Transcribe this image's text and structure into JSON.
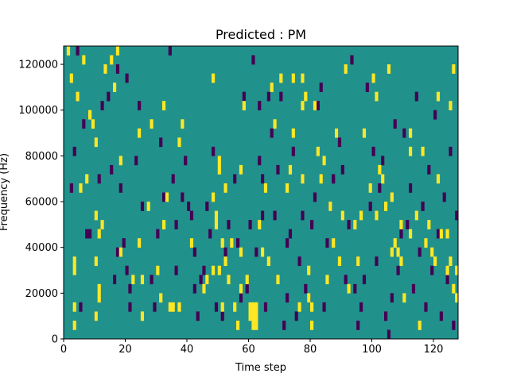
{
  "chart_data": {
    "type": "heatmap",
    "title": "Predicted : PM",
    "xlabel": "Time step",
    "ylabel": "Frequency (Hz)",
    "xlim": [
      0,
      128
    ],
    "ylim": [
      0,
      128000
    ],
    "x_ticks": [
      0,
      20,
      40,
      60,
      80,
      100,
      120
    ],
    "y_ticks": [
      0,
      20000,
      40000,
      60000,
      80000,
      100000,
      120000
    ],
    "x_tick_labels": [
      "0",
      "20",
      "40",
      "60",
      "80",
      "100",
      "120"
    ],
    "y_tick_labels": [
      "0",
      "20000",
      "40000",
      "60000",
      "80000",
      "100000",
      "120000"
    ],
    "n_time_steps": 128,
    "n_frequency_bins": 32,
    "bin_width_hz": 4000,
    "colormap": "viridis",
    "value_range": [
      0,
      1
    ],
    "background_value": 0.5,
    "colors": {
      "low": "#440154",
      "mid": "#21918c",
      "high": "#fde725"
    },
    "cells_high": [
      [
        1,
        31
      ],
      [
        2,
        28
      ],
      [
        3,
        7
      ],
      [
        3,
        8
      ],
      [
        3,
        3
      ],
      [
        3,
        1
      ],
      [
        4,
        26
      ],
      [
        5,
        16
      ],
      [
        6,
        30
      ],
      [
        7,
        17
      ],
      [
        8,
        24
      ],
      [
        9,
        23
      ],
      [
        10,
        2
      ],
      [
        10,
        21
      ],
      [
        10,
        13
      ],
      [
        10,
        8
      ],
      [
        11,
        5
      ],
      [
        11,
        4
      ],
      [
        11,
        11
      ],
      [
        12,
        12
      ],
      [
        13,
        29
      ],
      [
        15,
        30
      ],
      [
        16,
        27
      ],
      [
        17,
        31
      ],
      [
        18,
        9
      ],
      [
        18,
        19
      ],
      [
        22,
        6
      ],
      [
        24,
        22
      ],
      [
        24,
        10
      ],
      [
        25,
        2
      ],
      [
        25,
        6
      ],
      [
        27,
        14
      ],
      [
        28,
        23
      ],
      [
        30,
        7
      ],
      [
        31,
        4
      ],
      [
        32,
        25
      ],
      [
        32,
        12
      ],
      [
        33,
        15
      ],
      [
        34,
        3
      ],
      [
        35,
        3
      ],
      [
        37,
        21
      ],
      [
        37,
        3
      ],
      [
        38,
        23
      ],
      [
        41,
        10
      ],
      [
        45,
        5
      ],
      [
        46,
        6
      ],
      [
        48,
        7
      ],
      [
        48,
        15
      ],
      [
        48,
        28
      ],
      [
        49,
        12
      ],
      [
        49,
        13
      ],
      [
        50,
        18
      ],
      [
        50,
        19
      ],
      [
        50,
        7
      ],
      [
        51,
        3
      ],
      [
        51,
        10
      ],
      [
        52,
        8
      ],
      [
        52,
        16
      ],
      [
        53,
        6
      ],
      [
        54,
        10
      ],
      [
        55,
        3
      ],
      [
        56,
        1
      ],
      [
        57,
        5
      ],
      [
        57,
        18
      ],
      [
        57,
        9
      ],
      [
        58,
        25
      ],
      [
        59,
        6
      ],
      [
        60,
        3
      ],
      [
        60,
        2
      ],
      [
        61,
        3
      ],
      [
        61,
        2
      ],
      [
        61,
        1
      ],
      [
        62,
        1
      ],
      [
        62,
        2
      ],
      [
        62,
        3
      ],
      [
        63,
        12
      ],
      [
        64,
        9
      ],
      [
        65,
        16
      ],
      [
        66,
        8
      ],
      [
        67,
        27
      ],
      [
        68,
        23
      ],
      [
        69,
        6
      ],
      [
        70,
        28
      ],
      [
        72,
        16
      ],
      [
        73,
        18
      ],
      [
        74,
        22
      ],
      [
        74,
        28
      ],
      [
        76,
        3
      ],
      [
        77,
        28
      ],
      [
        77,
        25
      ],
      [
        77,
        17
      ],
      [
        78,
        26
      ],
      [
        79,
        7
      ],
      [
        79,
        4
      ],
      [
        80,
        3
      ],
      [
        80,
        1
      ],
      [
        81,
        25
      ],
      [
        82,
        20
      ],
      [
        83,
        17
      ],
      [
        84,
        19
      ],
      [
        85,
        6
      ],
      [
        86,
        14
      ],
      [
        87,
        10
      ],
      [
        88,
        22
      ],
      [
        89,
        8
      ],
      [
        90,
        13
      ],
      [
        91,
        29
      ],
      [
        92,
        5
      ],
      [
        94,
        12
      ],
      [
        95,
        8
      ],
      [
        96,
        13
      ],
      [
        97,
        22
      ],
      [
        99,
        16
      ],
      [
        100,
        28
      ],
      [
        101,
        26
      ],
      [
        101,
        13
      ],
      [
        102,
        18
      ],
      [
        103,
        17
      ],
      [
        104,
        14
      ],
      [
        105,
        29
      ],
      [
        106,
        9
      ],
      [
        106,
        15
      ],
      [
        107,
        10
      ],
      [
        108,
        9
      ],
      [
        109,
        8
      ],
      [
        109,
        12
      ],
      [
        110,
        4
      ],
      [
        112,
        22
      ],
      [
        112,
        11
      ],
      [
        112,
        20
      ],
      [
        114,
        13
      ],
      [
        115,
        1
      ],
      [
        116,
        20
      ],
      [
        117,
        10
      ],
      [
        118,
        12
      ],
      [
        119,
        9
      ],
      [
        120,
        8
      ],
      [
        121,
        26
      ],
      [
        121,
        17
      ],
      [
        122,
        11
      ],
      [
        124,
        11
      ],
      [
        124,
        7
      ],
      [
        125,
        8
      ],
      [
        125,
        25
      ],
      [
        126,
        29
      ],
      [
        126,
        5
      ],
      [
        127,
        7
      ],
      [
        127,
        4
      ]
    ],
    "cells_low": [
      [
        2,
        16
      ],
      [
        3,
        20
      ],
      [
        4,
        31
      ],
      [
        5,
        3
      ],
      [
        6,
        23
      ],
      [
        7,
        11
      ],
      [
        8,
        11
      ],
      [
        10,
        2
      ],
      [
        11,
        17
      ],
      [
        12,
        25
      ],
      [
        14,
        26
      ],
      [
        15,
        18
      ],
      [
        16,
        6
      ],
      [
        17,
        29
      ],
      [
        17,
        9
      ],
      [
        18,
        16
      ],
      [
        19,
        10
      ],
      [
        20,
        28
      ],
      [
        20,
        7
      ],
      [
        21,
        5
      ],
      [
        21,
        3
      ],
      [
        23,
        19
      ],
      [
        24,
        25
      ],
      [
        25,
        14
      ],
      [
        28,
        6
      ],
      [
        29,
        3
      ],
      [
        30,
        11
      ],
      [
        31,
        21
      ],
      [
        32,
        15
      ],
      [
        34,
        31
      ],
      [
        35,
        17
      ],
      [
        36,
        12
      ],
      [
        36,
        7
      ],
      [
        38,
        15
      ],
      [
        39,
        19
      ],
      [
        40,
        14
      ],
      [
        41,
        13
      ],
      [
        42,
        9
      ],
      [
        42,
        5
      ],
      [
        43,
        2
      ],
      [
        44,
        6
      ],
      [
        45,
        7
      ],
      [
        46,
        14
      ],
      [
        47,
        11
      ],
      [
        48,
        20
      ],
      [
        49,
        3
      ],
      [
        51,
        2
      ],
      [
        52,
        9
      ],
      [
        53,
        12
      ],
      [
        55,
        17
      ],
      [
        56,
        10
      ],
      [
        57,
        4
      ],
      [
        58,
        26
      ],
      [
        59,
        5
      ],
      [
        60,
        12
      ],
      [
        61,
        30
      ],
      [
        62,
        9
      ],
      [
        63,
        19
      ],
      [
        63,
        25
      ],
      [
        64,
        17
      ],
      [
        64,
        13
      ],
      [
        65,
        3
      ],
      [
        66,
        26
      ],
      [
        67,
        22
      ],
      [
        68,
        13
      ],
      [
        69,
        18
      ],
      [
        70,
        26
      ],
      [
        71,
        1
      ],
      [
        72,
        10
      ],
      [
        72,
        4
      ],
      [
        73,
        11
      ],
      [
        74,
        20
      ],
      [
        75,
        2
      ],
      [
        76,
        8
      ],
      [
        77,
        13
      ],
      [
        78,
        5
      ],
      [
        79,
        4
      ],
      [
        80,
        12
      ],
      [
        81,
        15
      ],
      [
        82,
        25
      ],
      [
        83,
        27
      ],
      [
        84,
        3
      ],
      [
        85,
        10
      ],
      [
        86,
        14
      ],
      [
        87,
        17
      ],
      [
        88,
        22
      ],
      [
        89,
        21
      ],
      [
        90,
        18
      ],
      [
        91,
        6
      ],
      [
        92,
        12
      ],
      [
        93,
        30
      ],
      [
        94,
        5
      ],
      [
        95,
        1
      ],
      [
        96,
        3
      ],
      [
        97,
        6
      ],
      [
        98,
        27
      ],
      [
        99,
        14
      ],
      [
        100,
        20
      ],
      [
        101,
        8
      ],
      [
        102,
        16
      ],
      [
        103,
        19
      ],
      [
        104,
        2
      ],
      [
        105,
        0
      ],
      [
        106,
        4
      ],
      [
        107,
        23
      ],
      [
        108,
        7
      ],
      [
        109,
        11
      ],
      [
        110,
        22
      ],
      [
        111,
        12
      ],
      [
        112,
        16
      ],
      [
        113,
        5
      ],
      [
        114,
        26
      ],
      [
        115,
        9
      ],
      [
        116,
        14
      ],
      [
        117,
        3
      ],
      [
        118,
        18
      ],
      [
        119,
        7
      ],
      [
        120,
        24
      ],
      [
        121,
        11
      ],
      [
        122,
        2
      ],
      [
        123,
        15
      ],
      [
        124,
        6
      ],
      [
        125,
        20
      ],
      [
        126,
        1
      ],
      [
        127,
        13
      ]
    ]
  }
}
